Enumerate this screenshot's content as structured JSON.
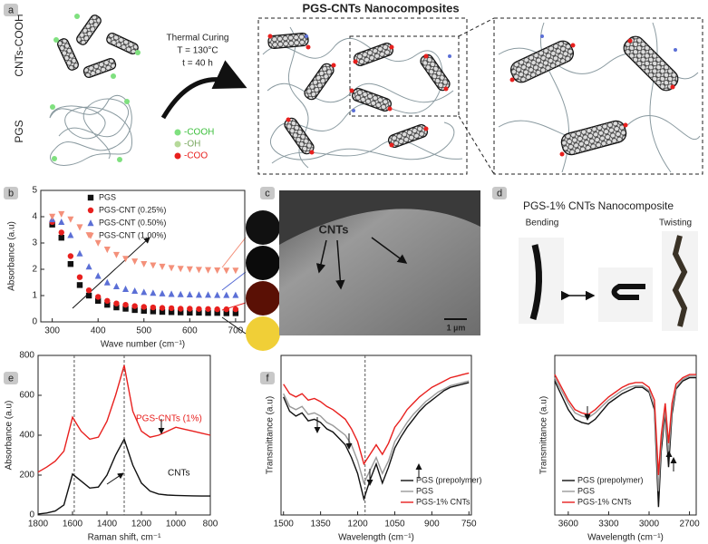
{
  "panel_labels": [
    "a",
    "b",
    "c",
    "d",
    "e",
    "f"
  ],
  "schematic": {
    "title": "PGS-CNTs Nanocomposites",
    "cnt_label": "CNTs-COOH",
    "pgs_label": "PGS",
    "process": [
      "Thermal Curing",
      "T = 130°C",
      "t = 40 h"
    ],
    "groups": [
      "-COOH",
      "-OH",
      "-COO"
    ]
  },
  "sem": {
    "label": "CNTs",
    "scale": "1 µm"
  },
  "photo": {
    "title": "PGS-1% CNTs Nanocomposite",
    "bending": "Bending",
    "twisting": "Twisting"
  },
  "chart_data": [
    {
      "type": "scatter",
      "xlabel": "Wave number (cm⁻¹)",
      "ylabel": "Absorbance (a.u)",
      "x": [
        300,
        320,
        340,
        360,
        380,
        400,
        420,
        440,
        460,
        480,
        500,
        520,
        540,
        560,
        580,
        600,
        620,
        640,
        660,
        680,
        700
      ],
      "xlim": [
        275,
        720
      ],
      "xticks": [
        300,
        400,
        500,
        600,
        700
      ],
      "ylim": [
        0,
        5
      ],
      "yticks": [
        0,
        1,
        2,
        3,
        4,
        5
      ],
      "legend": "upper right",
      "series": [
        {
          "name": "PGS",
          "color": "#111111",
          "marker": "square",
          "values": [
            3.7,
            3.2,
            2.2,
            1.4,
            1.0,
            0.8,
            0.65,
            0.55,
            0.5,
            0.45,
            0.42,
            0.4,
            0.38,
            0.37,
            0.36,
            0.35,
            0.35,
            0.34,
            0.34,
            0.33,
            0.33
          ]
        },
        {
          "name": "PGS-CNT (0.25%)",
          "color": "#e8201e",
          "marker": "circle",
          "values": [
            3.8,
            3.4,
            2.5,
            1.7,
            1.2,
            0.95,
            0.8,
            0.7,
            0.65,
            0.6,
            0.57,
            0.55,
            0.53,
            0.52,
            0.5,
            0.5,
            0.49,
            0.49,
            0.48,
            0.48,
            0.48
          ]
        },
        {
          "name": "PGS-CNT (0.50%)",
          "color": "#5b6fd6",
          "marker": "triangle-up",
          "values": [
            3.9,
            3.8,
            3.3,
            2.6,
            2.1,
            1.75,
            1.5,
            1.35,
            1.25,
            1.18,
            1.13,
            1.1,
            1.08,
            1.06,
            1.05,
            1.04,
            1.03,
            1.03,
            1.02,
            1.02,
            1.02
          ]
        },
        {
          "name": "PGS-CNT (1.00%)",
          "color": "#f4907a",
          "marker": "triangle-down",
          "values": [
            4.0,
            4.1,
            3.9,
            3.6,
            3.3,
            3.0,
            2.75,
            2.55,
            2.4,
            2.3,
            2.2,
            2.15,
            2.1,
            2.05,
            2.02,
            2.0,
            1.98,
            1.97,
            1.96,
            1.95,
            1.95
          ]
        }
      ]
    },
    {
      "type": "line",
      "xlabel": "Raman shift, cm⁻¹",
      "ylabel": "Absorbance (a.u)",
      "x": [
        1800,
        1750,
        1700,
        1650,
        1600,
        1550,
        1500,
        1450,
        1400,
        1350,
        1300,
        1250,
        1200,
        1150,
        1100,
        1050,
        1000,
        950,
        900,
        850,
        800
      ],
      "xlim": [
        1800,
        800
      ],
      "xticks": [
        1800,
        1600,
        1400,
        1200,
        1000,
        800
      ],
      "ylim": [
        0,
        800
      ],
      "yticks": [
        0,
        200,
        400,
        600,
        800
      ],
      "vlines": [
        1590,
        1300
      ],
      "legend": "inline",
      "series": [
        {
          "name": "PGS-CNTs (1%)",
          "color": "#e8201e",
          "values": [
            215,
            240,
            270,
            320,
            490,
            420,
            380,
            390,
            470,
            600,
            750,
            520,
            420,
            390,
            400,
            420,
            440,
            430,
            420,
            410,
            400
          ]
        },
        {
          "name": "CNTs",
          "color": "#111111",
          "values": [
            5,
            10,
            20,
            50,
            205,
            170,
            135,
            140,
            200,
            300,
            380,
            250,
            160,
            120,
            105,
            100,
            98,
            97,
            96,
            95,
            95
          ]
        }
      ]
    },
    {
      "type": "line",
      "xlabel": "Wavelength (cm⁻¹)",
      "ylabel": "Transmittance (a.u)",
      "x": [
        1500,
        1475,
        1450,
        1425,
        1400,
        1375,
        1350,
        1325,
        1300,
        1275,
        1250,
        1225,
        1200,
        1175,
        1150,
        1125,
        1100,
        1075,
        1050,
        1025,
        1000,
        975,
        950,
        925,
        900,
        875,
        850,
        825,
        800,
        775,
        750
      ],
      "xlim": [
        1510,
        740
      ],
      "xticks": [
        1500,
        1350,
        1200,
        1050,
        900,
        750
      ],
      "ylim": [
        0,
        100
      ],
      "vlines": [
        1170
      ],
      "legend": "lower right",
      "series": [
        {
          "name": "PGS (prepolymer)",
          "color": "#111111",
          "values": [
            74,
            65,
            62,
            64,
            59,
            60,
            58,
            54,
            52,
            48,
            44,
            36,
            26,
            10,
            22,
            32,
            20,
            30,
            42,
            49,
            55,
            60,
            65,
            69,
            72,
            75,
            78,
            80,
            81,
            82,
            83
          ]
        },
        {
          "name": "PGS",
          "color": "#9a9a9a",
          "values": [
            76,
            68,
            66,
            68,
            63,
            64,
            62,
            58,
            56,
            53,
            50,
            44,
            34,
            20,
            28,
            36,
            26,
            34,
            46,
            52,
            58,
            63,
            67,
            71,
            74,
            77,
            79,
            81,
            82,
            83,
            84
          ]
        },
        {
          "name": "PGS-1% CNTs",
          "color": "#e8201e",
          "values": [
            82,
            76,
            74,
            76,
            72,
            73,
            71,
            68,
            66,
            63,
            60,
            54,
            46,
            32,
            38,
            44,
            38,
            45,
            55,
            60,
            66,
            70,
            74,
            77,
            80,
            82,
            84,
            86,
            87,
            88,
            89
          ]
        }
      ]
    },
    {
      "type": "line",
      "xlabel": "Wavelength (cm⁻¹)",
      "ylabel": "Transmittance (a.u)",
      "x": [
        3700,
        3650,
        3600,
        3550,
        3500,
        3450,
        3400,
        3350,
        3300,
        3250,
        3200,
        3150,
        3100,
        3050,
        3000,
        2960,
        2930,
        2910,
        2880,
        2855,
        2830,
        2800,
        2750,
        2700,
        2650
      ],
      "xlim": [
        3700,
        2650
      ],
      "xticks": [
        3600,
        3300,
        3000,
        2700
      ],
      "ylim": [
        0,
        100
      ],
      "legend": "lower left",
      "series": [
        {
          "name": "PGS (prepolymer)",
          "color": "#111111",
          "values": [
            84,
            75,
            66,
            60,
            58,
            57,
            60,
            65,
            70,
            73,
            76,
            78,
            80,
            80,
            77,
            66,
            5,
            40,
            64,
            30,
            63,
            79,
            84,
            86,
            86
          ]
        },
        {
          "name": "PGS",
          "color": "#9a9a9a",
          "values": [
            86,
            78,
            70,
            64,
            62,
            61,
            64,
            68,
            72,
            75,
            78,
            80,
            81,
            81,
            78,
            68,
            15,
            45,
            66,
            38,
            66,
            80,
            85,
            87,
            87
          ]
        },
        {
          "name": "PGS-1% CNTs",
          "color": "#e8201e",
          "values": [
            88,
            80,
            72,
            66,
            64,
            63,
            66,
            70,
            74,
            77,
            80,
            82,
            83,
            83,
            80,
            72,
            25,
            50,
            70,
            45,
            70,
            82,
            86,
            88,
            88
          ]
        }
      ]
    }
  ]
}
